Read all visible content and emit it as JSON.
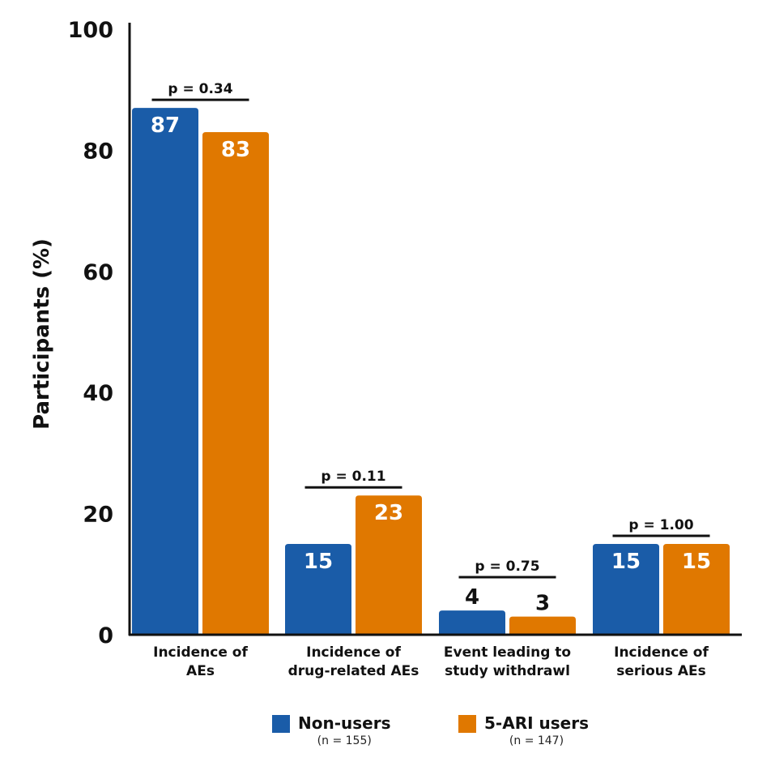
{
  "chart_data": {
    "type": "bar",
    "ylabel": "Participants (%)",
    "ylim": [
      0,
      100
    ],
    "yticks": [
      0,
      20,
      40,
      60,
      80,
      100
    ],
    "categories": [
      [
        "Incidence of",
        "AEs"
      ],
      [
        "Incidence of",
        "drug-related AEs"
      ],
      [
        "Event leading to",
        "study withdrawl"
      ],
      [
        "Incidence of",
        "serious AEs"
      ]
    ],
    "series": [
      {
        "name": "Non-users",
        "n_label": "(n = 155)",
        "color": "#1a5ca8",
        "values": [
          87,
          15,
          4,
          15
        ]
      },
      {
        "name": "5-ARI users",
        "n_label": "(n = 147)",
        "color": "#e07800",
        "values": [
          83,
          23,
          3,
          15
        ]
      }
    ],
    "pvalues": [
      "p = 0.34",
      "p = 0.11",
      "p = 0.75",
      "p = 1.00"
    ],
    "legend_position": "bottom"
  }
}
